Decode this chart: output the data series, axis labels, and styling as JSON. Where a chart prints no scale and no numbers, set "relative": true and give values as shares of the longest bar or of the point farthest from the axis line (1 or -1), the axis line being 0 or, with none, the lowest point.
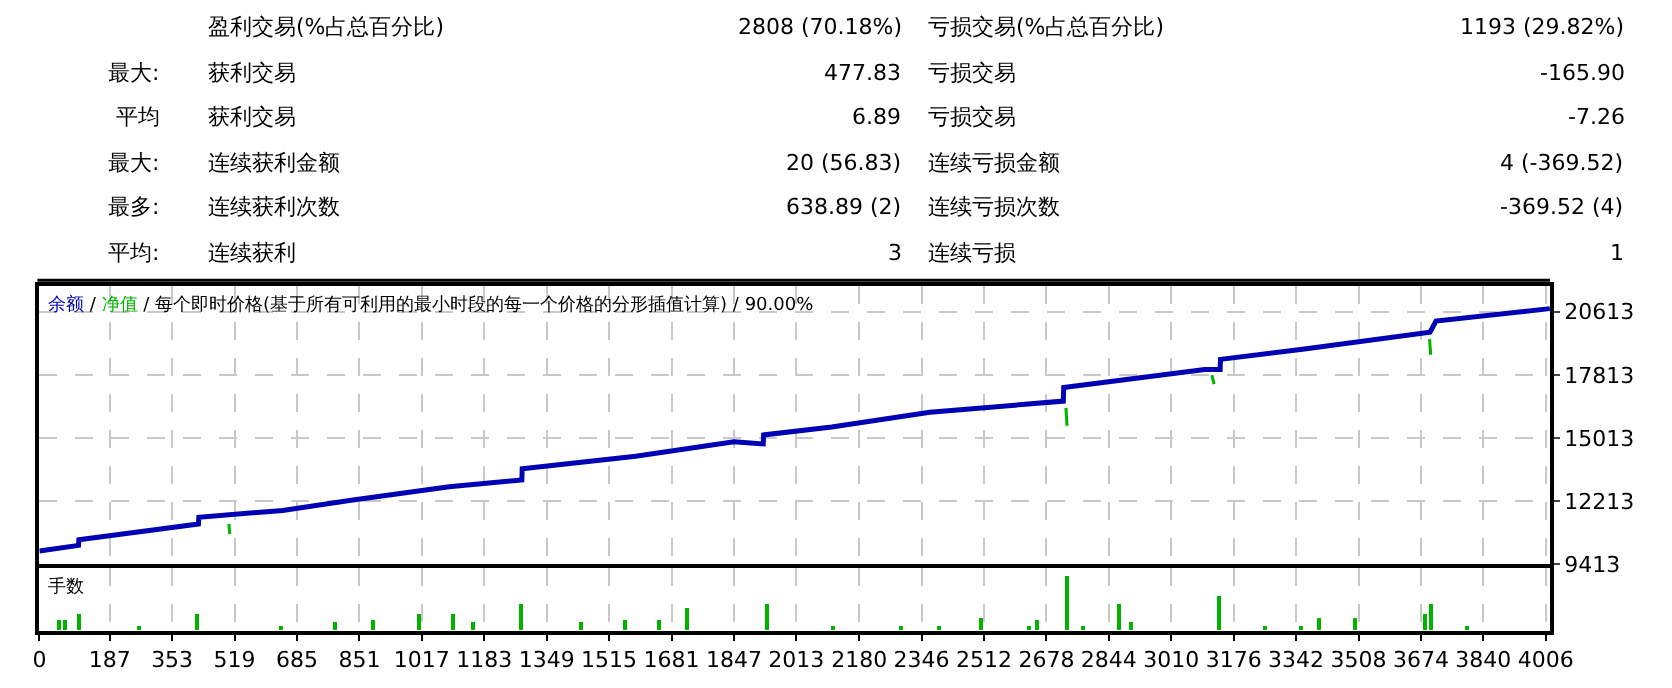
{
  "chart_data": [
    {
      "type": "other",
      "annotations": [
        null,
        "盈利交易(%占总百分比)",
        "2808 (70.18%)",
        "亏损交易(%占总百分比)",
        "1193 (29.82%)",
        "最大:",
        "获利交易",
        "477.83",
        "亏损交易",
        "-165.90",
        "平均",
        "获利交易",
        "6.89",
        "亏损交易",
        "-7.26",
        "最大:",
        "连续获利金额",
        "20 (56.83)",
        "连续亏损金额",
        "4 (-369.52)",
        "最多:",
        "连续获利次数",
        "638.89 (2)",
        "连续亏损次数",
        "-369.52 (4)",
        "平均:",
        "连续获利",
        "3",
        "连续亏损",
        "1"
      ]
    },
    {
      "type": "line",
      "title": "余额 / 净值 / 每个即时价格(基于所有可利用的最小时段的每一个价格的分形插值计算) / 90.00%",
      "xlim": [
        0,
        4017
      ],
      "ylim": [
        9413,
        21750
      ],
      "yticks": [
        9413,
        12213,
        15013,
        17813,
        20613
      ],
      "xticks": [
        0,
        187,
        353,
        519,
        685,
        851,
        1017,
        1183,
        1349,
        1515,
        1681,
        1847,
        2013,
        2180,
        2346,
        2512,
        2678,
        2844,
        3010,
        3176,
        3342,
        3508,
        3674,
        3840,
        4006
      ],
      "grid": true,
      "tick_labels": "y",
      "marker": "none",
      "line_style": "solid",
      "series": [
        {
          "color": "#00b400",
          "x": [
            504,
            506,
            508,
            2730,
            2733,
            2736,
            3118,
            3124,
            3126,
            3697,
            3700
          ],
          "values": [
            11200,
            10750,
            null,
            16350,
            15550,
            null,
            17800,
            17400,
            null,
            19400,
            18700
          ]
        },
        {
          "color": "#0000b4",
          "x": [
            0,
            104,
            105,
            423,
            424,
            647,
            829,
            1090,
            1283,
            1284,
            1586,
            1847,
            1925,
            1926,
            2107,
            2368,
            2723,
            2724,
            3099,
            3140,
            3141,
            3359,
            3698,
            3714,
            4017
          ],
          "values": [
            10000,
            10250,
            10500,
            11200,
            11500,
            11800,
            12250,
            12850,
            13150,
            13650,
            14200,
            14850,
            14750,
            15150,
            15500,
            16150,
            16650,
            17250,
            18050,
            18050,
            18500,
            18950,
            19700,
            20200,
            20750
          ]
        }
      ]
    },
    {
      "type": "bar",
      "title": "手数",
      "relative": true,
      "color": "#00b400",
      "xlim": [
        0,
        4017
      ],
      "xticks": [
        0,
        187,
        353,
        519,
        685,
        851,
        1017,
        1183,
        1349,
        1515,
        1681,
        1847,
        2013,
        2180,
        2346,
        2512,
        2678,
        2844,
        3010,
        3176,
        3342,
        3508,
        3674,
        3840,
        4006
      ],
      "grid": "x",
      "tick_labels": "x",
      "x": [
        52,
        68,
        110,
        266,
        423,
        647,
        788,
        892,
        1012,
        1100,
        1158,
        1283,
        1445,
        1560,
        1648,
        1726,
        1935,
        2113,
        2295,
        2394,
        2509,
        2634,
        2655,
        2733,
        2780,
        2874,
        2905,
        3140,
        3260,
        3359,
        3406,
        3500,
        3688,
        3704,
        3798
      ],
      "values": [
        0.2,
        0.2,
        0.3,
        0.1,
        0.3,
        0.1,
        0.15,
        0.2,
        0.3,
        0.3,
        0.15,
        0.48,
        0.15,
        0.2,
        0.2,
        0.4,
        0.48,
        0.1,
        0.1,
        0.1,
        0.25,
        0.1,
        0.2,
        1,
        0.1,
        0.48,
        0.15,
        0.63,
        0.1,
        0.1,
        0.25,
        0.25,
        0.3,
        0.48,
        0.1
      ]
    }
  ]
}
